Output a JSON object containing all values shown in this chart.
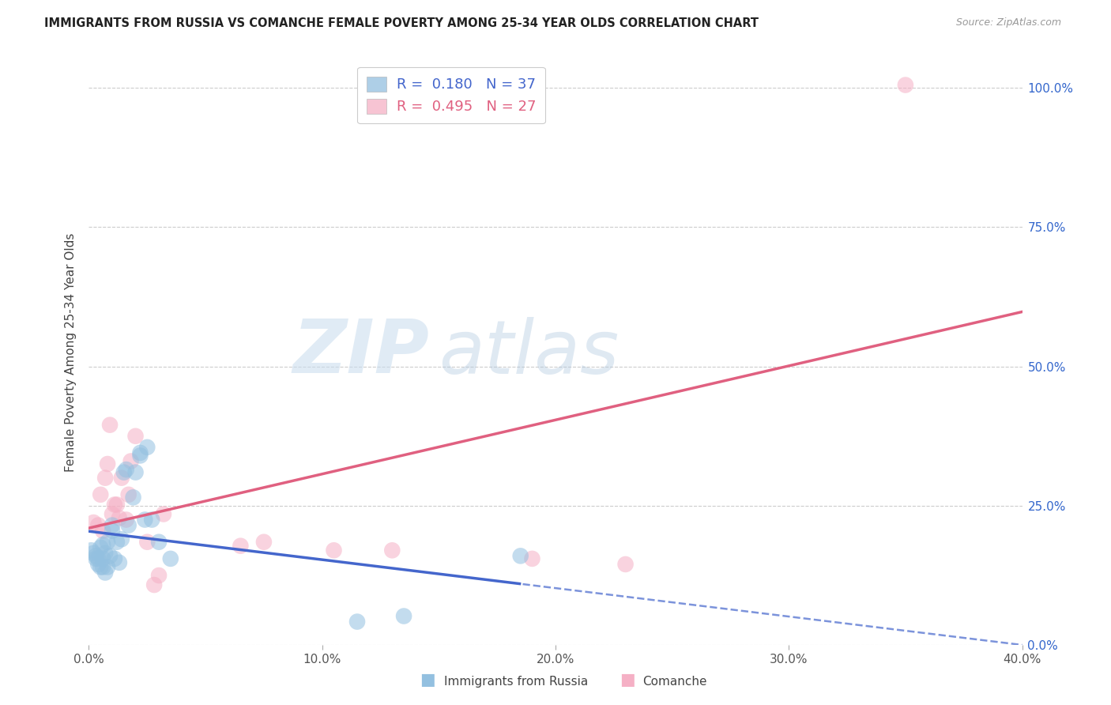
{
  "title": "IMMIGRANTS FROM RUSSIA VS COMANCHE FEMALE POVERTY AMONG 25-34 YEAR OLDS CORRELATION CHART",
  "source": "Source: ZipAtlas.com",
  "ylabel": "Female Poverty Among 25-34 Year Olds",
  "xlim": [
    0.0,
    0.4
  ],
  "ylim": [
    0.0,
    1.05
  ],
  "xlabel_vals": [
    0.0,
    0.1,
    0.2,
    0.3,
    0.4
  ],
  "xlabel_ticks": [
    "0.0%",
    "10.0%",
    "20.0%",
    "30.0%",
    "40.0%"
  ],
  "ylabel_vals": [
    0.0,
    0.25,
    0.5,
    0.75,
    1.0
  ],
  "ylabel_ticks": [
    "0.0%",
    "25.0%",
    "50.0%",
    "75.0%",
    "100.0%"
  ],
  "legend_r_blue": "0.180",
  "legend_n_blue": "37",
  "legend_r_pink": "0.495",
  "legend_n_pink": "27",
  "blue_scatter_color": "#93c0e0",
  "pink_scatter_color": "#f5b0c5",
  "blue_line_color": "#4466cc",
  "pink_line_color": "#e06080",
  "blue_line_solid_end": 0.185,
  "blue_scatter": [
    [
      0.001,
      0.17
    ],
    [
      0.002,
      0.165
    ],
    [
      0.003,
      0.16
    ],
    [
      0.003,
      0.155
    ],
    [
      0.004,
      0.155
    ],
    [
      0.004,
      0.145
    ],
    [
      0.005,
      0.175
    ],
    [
      0.005,
      0.14
    ],
    [
      0.006,
      0.18
    ],
    [
      0.006,
      0.155
    ],
    [
      0.006,
      0.14
    ],
    [
      0.007,
      0.165
    ],
    [
      0.007,
      0.13
    ],
    [
      0.008,
      0.185
    ],
    [
      0.008,
      0.14
    ],
    [
      0.009,
      0.16
    ],
    [
      0.01,
      0.205
    ],
    [
      0.01,
      0.215
    ],
    [
      0.011,
      0.155
    ],
    [
      0.012,
      0.185
    ],
    [
      0.013,
      0.148
    ],
    [
      0.014,
      0.19
    ],
    [
      0.015,
      0.31
    ],
    [
      0.016,
      0.315
    ],
    [
      0.017,
      0.215
    ],
    [
      0.019,
      0.265
    ],
    [
      0.02,
      0.31
    ],
    [
      0.022,
      0.345
    ],
    [
      0.022,
      0.34
    ],
    [
      0.024,
      0.225
    ],
    [
      0.025,
      0.355
    ],
    [
      0.027,
      0.225
    ],
    [
      0.03,
      0.185
    ],
    [
      0.035,
      0.155
    ],
    [
      0.115,
      0.042
    ],
    [
      0.135,
      0.052
    ],
    [
      0.185,
      0.16
    ]
  ],
  "pink_scatter": [
    [
      0.002,
      0.22
    ],
    [
      0.004,
      0.215
    ],
    [
      0.005,
      0.27
    ],
    [
      0.006,
      0.205
    ],
    [
      0.007,
      0.3
    ],
    [
      0.008,
      0.325
    ],
    [
      0.009,
      0.395
    ],
    [
      0.01,
      0.235
    ],
    [
      0.011,
      0.252
    ],
    [
      0.012,
      0.252
    ],
    [
      0.013,
      0.228
    ],
    [
      0.014,
      0.3
    ],
    [
      0.016,
      0.225
    ],
    [
      0.017,
      0.27
    ],
    [
      0.018,
      0.33
    ],
    [
      0.02,
      0.375
    ],
    [
      0.025,
      0.185
    ],
    [
      0.028,
      0.108
    ],
    [
      0.03,
      0.125
    ],
    [
      0.032,
      0.235
    ],
    [
      0.065,
      0.178
    ],
    [
      0.075,
      0.185
    ],
    [
      0.105,
      0.17
    ],
    [
      0.13,
      0.17
    ],
    [
      0.19,
      0.155
    ],
    [
      0.35,
      1.005
    ],
    [
      0.23,
      0.145
    ]
  ]
}
